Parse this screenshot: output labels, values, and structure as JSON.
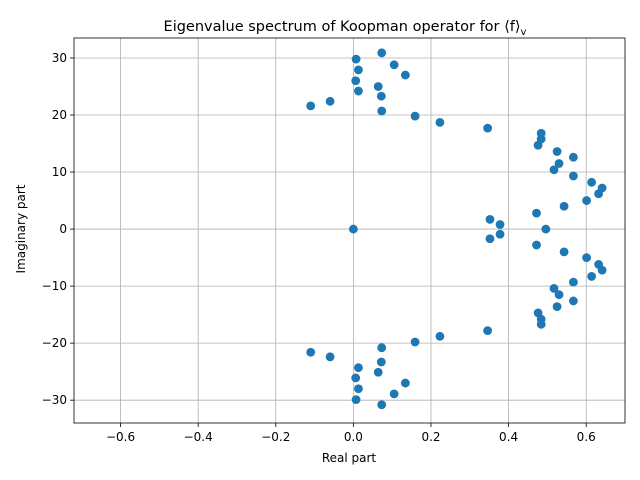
{
  "chart_data": {
    "type": "scatter",
    "title": "Eigenvalue spectrum of Koopman operator for ⟨f⟩",
    "title_subscript": "v",
    "xlabel": "Real part",
    "ylabel": "Imaginary part",
    "xlim": [
      -0.72,
      0.7
    ],
    "ylim": [
      -34,
      33.5
    ],
    "xticks": [
      -0.6,
      -0.4,
      -0.2,
      0.0,
      0.2,
      0.4,
      0.6
    ],
    "xtick_labels": [
      "−0.6",
      "−0.4",
      "−0.2",
      "0.0",
      "0.2",
      "0.4",
      "0.6"
    ],
    "yticks": [
      -30,
      -20,
      -10,
      0,
      10,
      20,
      30
    ],
    "ytick_labels": [
      "−30",
      "−20",
      "−10",
      "0",
      "10",
      "20",
      "30"
    ],
    "grid": true,
    "color": "#1f77b4",
    "points": [
      [
        0.0,
        0.0
      ],
      [
        0.352,
        1.7
      ],
      [
        0.378,
        0.8
      ],
      [
        0.496,
        0.0
      ],
      [
        0.472,
        2.8
      ],
      [
        0.543,
        4.0
      ],
      [
        0.601,
        5.0
      ],
      [
        0.632,
        6.2
      ],
      [
        0.641,
        7.2
      ],
      [
        0.614,
        8.2
      ],
      [
        0.567,
        9.3
      ],
      [
        0.517,
        10.4
      ],
      [
        0.53,
        11.5
      ],
      [
        0.567,
        12.6
      ],
      [
        0.525,
        13.6
      ],
      [
        0.476,
        14.7
      ],
      [
        0.484,
        15.8
      ],
      [
        0.484,
        16.8
      ],
      [
        0.346,
        17.7
      ],
      [
        0.223,
        18.7
      ],
      [
        0.159,
        19.8
      ],
      [
        0.073,
        20.7
      ],
      [
        -0.11,
        21.6
      ],
      [
        -0.06,
        22.4
      ],
      [
        0.013,
        24.2
      ],
      [
        0.072,
        23.3
      ],
      [
        0.064,
        25.0
      ],
      [
        0.006,
        26.0
      ],
      [
        0.134,
        27.0
      ],
      [
        0.013,
        27.9
      ],
      [
        0.105,
        28.8
      ],
      [
        0.007,
        29.8
      ],
      [
        0.073,
        30.9
      ],
      [
        0.352,
        -1.7
      ],
      [
        0.378,
        -0.9
      ],
      [
        0.472,
        -2.8
      ],
      [
        0.543,
        -4.0
      ],
      [
        0.601,
        -5.0
      ],
      [
        0.632,
        -6.2
      ],
      [
        0.641,
        -7.2
      ],
      [
        0.614,
        -8.3
      ],
      [
        0.567,
        -9.3
      ],
      [
        0.517,
        -10.4
      ],
      [
        0.53,
        -11.5
      ],
      [
        0.567,
        -12.6
      ],
      [
        0.525,
        -13.6
      ],
      [
        0.476,
        -14.7
      ],
      [
        0.484,
        -15.8
      ],
      [
        0.484,
        -16.7
      ],
      [
        0.346,
        -17.8
      ],
      [
        0.223,
        -18.8
      ],
      [
        0.159,
        -19.8
      ],
      [
        0.073,
        -20.8
      ],
      [
        -0.11,
        -21.6
      ],
      [
        -0.06,
        -22.4
      ],
      [
        0.013,
        -24.3
      ],
      [
        0.072,
        -23.3
      ],
      [
        0.064,
        -25.1
      ],
      [
        0.006,
        -26.1
      ],
      [
        0.134,
        -27.0
      ],
      [
        0.013,
        -28.0
      ],
      [
        0.105,
        -28.9
      ],
      [
        0.007,
        -29.9
      ],
      [
        0.073,
        -30.8
      ]
    ]
  }
}
